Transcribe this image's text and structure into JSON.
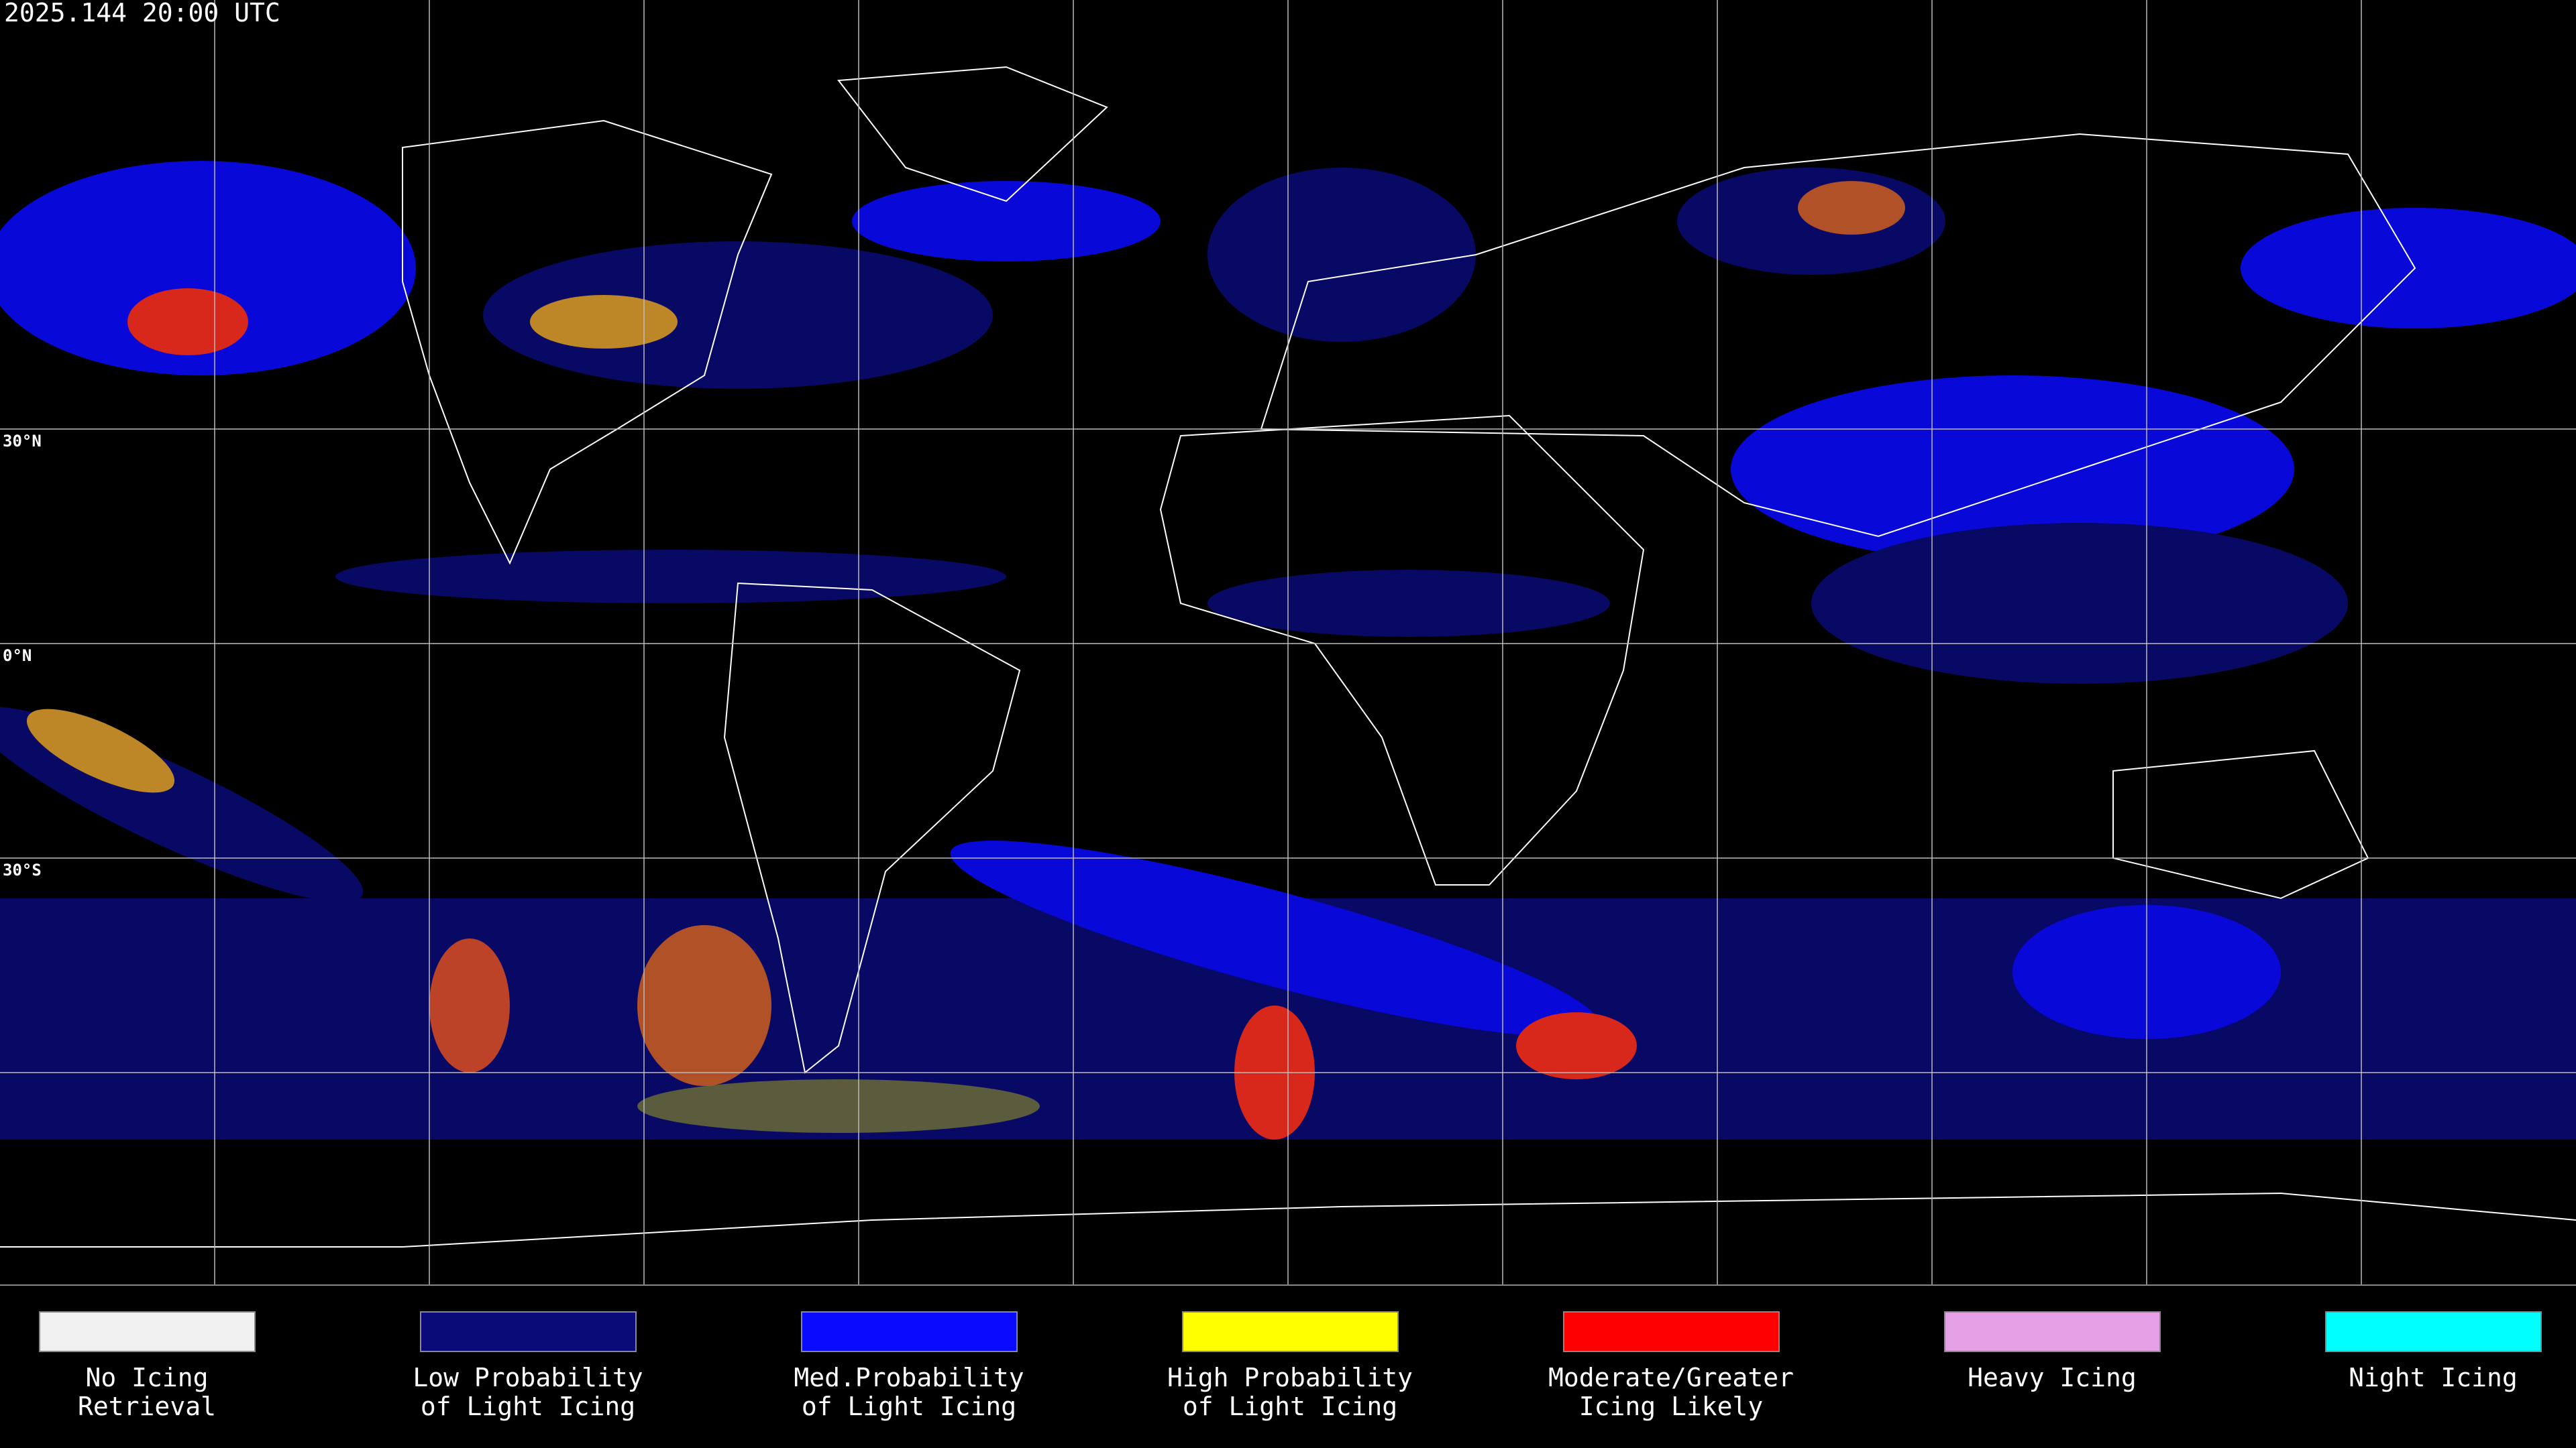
{
  "header": {
    "title": "2025.144 20:00 UTC"
  },
  "map": {
    "latitude_labels": [
      "30°N",
      "0°N",
      "30°S"
    ]
  },
  "legend": {
    "items": [
      {
        "label_lines": [
          "No Icing",
          "Retrieval"
        ],
        "color": "#f0f0f0"
      },
      {
        "label_lines": [
          "Low Probability",
          "of Light Icing"
        ],
        "color": "#0a0a78"
      },
      {
        "label_lines": [
          "Med.Probability",
          "of Light Icing"
        ],
        "color": "#0a0aff"
      },
      {
        "label_lines": [
          "High Probability",
          "of Light Icing"
        ],
        "color": "#ffff00"
      },
      {
        "label_lines": [
          "Moderate/Greater",
          "Icing Likely"
        ],
        "color": "#ff0000"
      },
      {
        "label_lines": [
          "Heavy Icing"
        ],
        "color": "#e6a0e6"
      },
      {
        "label_lines": [
          "Night Icing"
        ],
        "color": "#00ffff"
      }
    ]
  }
}
